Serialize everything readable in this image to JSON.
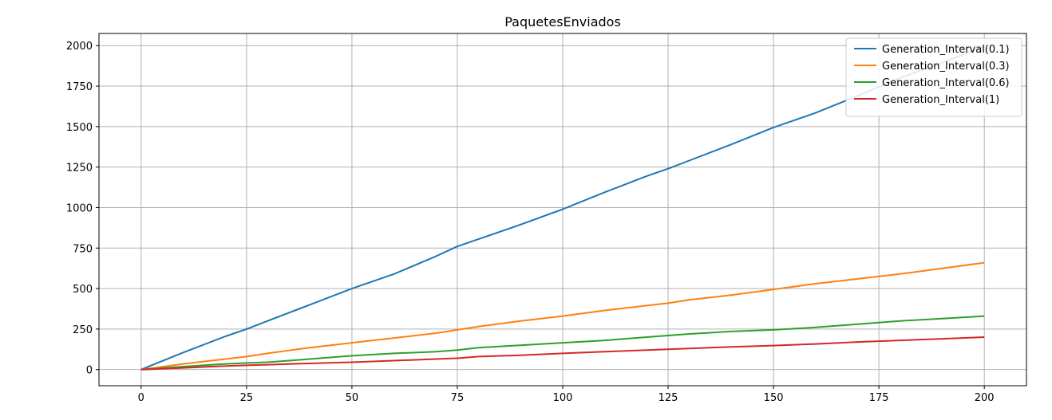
{
  "chart_data": {
    "type": "line",
    "title": "PaquetesEnviados",
    "xlabel": "",
    "ylabel": "",
    "xlim": [
      -10,
      210
    ],
    "ylim": [
      -100,
      2075
    ],
    "xticks": [
      0,
      25,
      50,
      75,
      100,
      125,
      150,
      175,
      200
    ],
    "yticks": [
      0,
      250,
      500,
      750,
      1000,
      1250,
      1500,
      1750,
      2000
    ],
    "grid": true,
    "legend_position": "top-right",
    "x": [
      0,
      10,
      20,
      25,
      30,
      40,
      50,
      60,
      70,
      75,
      80,
      90,
      100,
      110,
      120,
      125,
      130,
      140,
      150,
      160,
      170,
      180,
      190,
      200
    ],
    "series": [
      {
        "name": "Generation_Interval(0.1)",
        "color": "#1f77b4",
        "values": [
          0,
          105,
          205,
          250,
          300,
          400,
          500,
          590,
          700,
          760,
          805,
          895,
          990,
          1095,
          1195,
          1240,
          1290,
          1390,
          1495,
          1585,
          1690,
          1800,
          1895,
          1995
        ]
      },
      {
        "name": "Generation_Interval(0.3)",
        "color": "#ff7f0e",
        "values": [
          0,
          35,
          65,
          80,
          100,
          135,
          165,
          195,
          225,
          245,
          265,
          300,
          330,
          365,
          395,
          410,
          430,
          460,
          495,
          530,
          560,
          590,
          625,
          660
        ]
      },
      {
        "name": "Generation_Interval(0.6)",
        "color": "#2ca02c",
        "values": [
          0,
          18,
          35,
          40,
          45,
          65,
          85,
          100,
          110,
          120,
          135,
          150,
          165,
          180,
          200,
          210,
          220,
          235,
          245,
          260,
          280,
          300,
          315,
          330
        ]
      },
      {
        "name": "Generation_Interval(1)",
        "color": "#d62728",
        "values": [
          0,
          10,
          22,
          26,
          30,
          38,
          45,
          55,
          65,
          70,
          80,
          88,
          100,
          110,
          120,
          125,
          130,
          140,
          148,
          158,
          170,
          180,
          190,
          200
        ]
      }
    ]
  }
}
